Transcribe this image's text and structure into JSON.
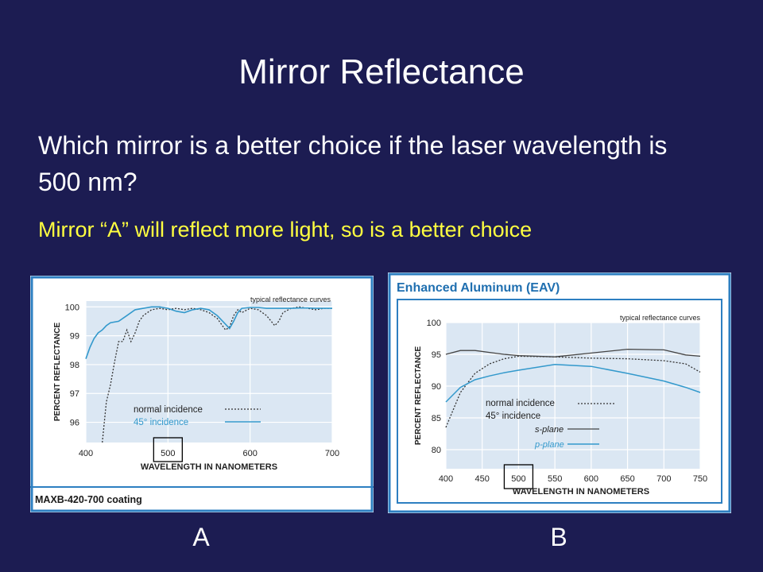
{
  "slide": {
    "title": "Mirror Reflectance",
    "question": "Which mirror is a better choice if the laser wavelength is 500 nm?",
    "answer": "Mirror “A” will reflect more light, so is a better choice",
    "label_a": "A",
    "label_b": "B"
  },
  "colors": {
    "background": "#1c1c52",
    "answer": "#ffff40",
    "blue_curve": "#3399cc",
    "frame": "#2d7fc1",
    "plot_bg": "#dbe7f3",
    "title_b": "#1f6fb0"
  },
  "chart_data": [
    {
      "type": "line",
      "title": "typical reflectance curves",
      "caption": "MAXB-420-700 coating",
      "xlabel": "WAVELENGTH IN NANOMETERS",
      "ylabel": "PERCENT REFLECTANCE",
      "xlim": [
        400,
        700
      ],
      "ylim": [
        95.3,
        100.2
      ],
      "xticks": [
        400,
        500,
        600,
        700
      ],
      "yticks": [
        96,
        97,
        98,
        99,
        100
      ],
      "highlight_tick": 500,
      "series": [
        {
          "name": "normal incidence",
          "style": "dotted",
          "x": [
            420,
            425,
            430,
            435,
            440,
            445,
            450,
            455,
            460,
            465,
            470,
            475,
            480,
            490,
            500,
            510,
            520,
            530,
            540,
            550,
            560,
            570,
            575,
            580,
            585,
            590,
            600,
            610,
            620,
            630,
            635,
            640,
            650,
            660,
            670,
            680,
            690,
            700
          ],
          "y": [
            95.3,
            96.7,
            97.3,
            98.1,
            98.8,
            98.8,
            99.2,
            98.8,
            99.1,
            99.5,
            99.7,
            99.8,
            99.9,
            99.95,
            99.9,
            99.95,
            99.9,
            99.95,
            99.9,
            99.8,
            99.6,
            99.2,
            99.3,
            99.7,
            99.9,
            99.8,
            99.95,
            99.9,
            99.7,
            99.35,
            99.5,
            99.8,
            99.95,
            100,
            99.95,
            99.9,
            99.95,
            99.95
          ]
        },
        {
          "name": "45° incidence",
          "style": "solid",
          "x": [
            400,
            405,
            410,
            415,
            420,
            425,
            430,
            440,
            450,
            460,
            470,
            480,
            490,
            500,
            510,
            520,
            530,
            540,
            550,
            560,
            570,
            575,
            580,
            585,
            590,
            600,
            610,
            620,
            630,
            640,
            650,
            660,
            670,
            680,
            690,
            700
          ],
          "y": [
            98.2,
            98.6,
            98.9,
            99.1,
            99.2,
            99.35,
            99.45,
            99.5,
            99.7,
            99.9,
            99.95,
            100,
            100,
            99.95,
            99.85,
            99.8,
            99.9,
            99.95,
            99.9,
            99.7,
            99.4,
            99.25,
            99.5,
            99.8,
            99.95,
            99.98,
            99.98,
            99.95,
            99.95,
            99.95,
            99.95,
            99.96,
            99.96,
            99.95,
            99.95,
            99.95
          ]
        }
      ]
    },
    {
      "type": "line",
      "title": "Enhanced Aluminum (EAV)",
      "subtitle": "typical reflectance curves",
      "xlabel": "WAVELENGTH IN NANOMETERS",
      "ylabel": "PERCENT REFLECTANCE",
      "xlim": [
        400,
        750
      ],
      "ylim": [
        77,
        100
      ],
      "xticks": [
        400,
        450,
        500,
        550,
        600,
        650,
        700,
        750
      ],
      "yticks": [
        80,
        85,
        90,
        95,
        100
      ],
      "highlight_tick": 500,
      "legend_heading_1": "normal incidence",
      "legend_heading_2": "45° incidence",
      "series": [
        {
          "name": "normal incidence",
          "style": "dotted",
          "x": [
            400,
            420,
            440,
            460,
            480,
            500,
            550,
            600,
            650,
            700,
            730,
            750
          ],
          "y": [
            83.5,
            89,
            92,
            93.5,
            94.3,
            94.7,
            94.6,
            94.4,
            94.3,
            94,
            93.5,
            92.2
          ]
        },
        {
          "name": "s-plane",
          "style": "dark",
          "x": [
            400,
            420,
            440,
            460,
            480,
            500,
            550,
            600,
            650,
            700,
            730,
            750
          ],
          "y": [
            95,
            95.6,
            95.6,
            95.3,
            95,
            94.8,
            94.6,
            95.2,
            95.8,
            95.7,
            94.9,
            94.7
          ]
        },
        {
          "name": "p-plane",
          "style": "solid",
          "x": [
            400,
            420,
            440,
            460,
            480,
            500,
            550,
            600,
            650,
            700,
            730,
            750
          ],
          "y": [
            87.5,
            89.8,
            91,
            91.6,
            92.1,
            92.5,
            93.4,
            93.1,
            92,
            90.8,
            89.8,
            89
          ]
        }
      ]
    }
  ]
}
